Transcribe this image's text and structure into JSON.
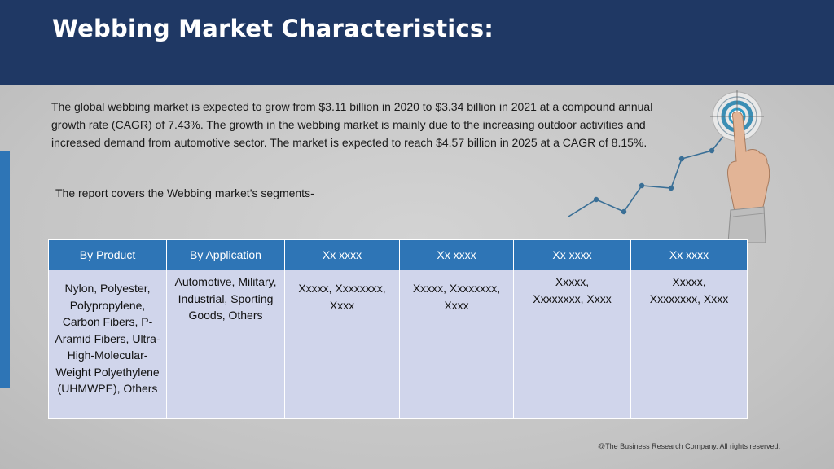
{
  "title": "Webbing Market Characteristics:",
  "intro": "The global webbing market is expected to grow from $3.11 billion in 2020 to $3.34 billion in 2021 at a compound annual growth rate (CAGR) of 7.43%. The growth in the webbing market is mainly due to the increasing outdoor activities and increased demand from automotive sector. The market is expected to reach $4.57 billion in 2025 at a CAGR of 8.15%.",
  "subtitle": "The report covers the Webbing market’s segments-",
  "table": {
    "headers": [
      "By Product",
      "By Application",
      "Xx xxxx",
      "Xx xxxx",
      "Xx xxxx",
      "Xx xxxx"
    ],
    "cells": [
      "Nylon, Polyester, Polypropylene, Carbon Fibers, P-Aramid Fibers, Ultra-High-Molecular-Weight Polyethylene (UHMWPE), Others",
      "Automotive, Military, Industrial, Sporting Goods, Others",
      "Xxxxx, Xxxxxxxx, Xxxx",
      "Xxxxx, Xxxxxxxx, Xxxx",
      "Xxxxx, Xxxxxxxx, Xxxx",
      "Xxxxx, Xxxxxxxx, Xxxx"
    ]
  },
  "footer": "@The Business Research Company. All rights reserved.",
  "colors": {
    "header_bg": "#1f3864",
    "accent": "#2e75b6",
    "cell_bg": "#d0d5eb",
    "chart_line": "#3a6f96"
  },
  "illustration": {
    "icons": [
      "growth-line-chart-icon",
      "target-icon",
      "pointing-hand-icon"
    ]
  }
}
